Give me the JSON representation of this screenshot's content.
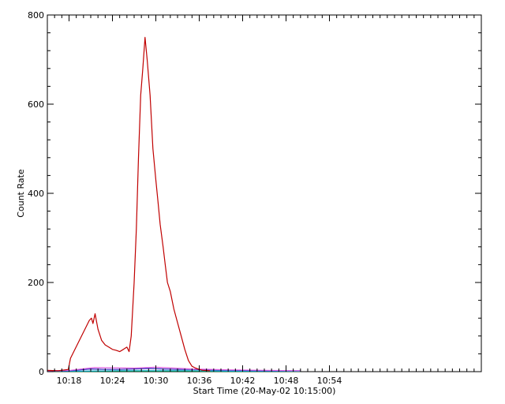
{
  "chart_data": {
    "type": "line",
    "title": "",
    "xlabel": "Start Time (20-May-02 10:15:00)",
    "ylabel": "Count Rate",
    "x_unit": "minutes past 10:15:00",
    "xlim": [
      0,
      60
    ],
    "ylim": [
      0,
      800
    ],
    "x_ticks": [
      {
        "value": 3,
        "label": "10:18"
      },
      {
        "value": 9,
        "label": "10:24"
      },
      {
        "value": 15,
        "label": "10:30"
      },
      {
        "value": 21,
        "label": "10:36"
      },
      {
        "value": 27,
        "label": "10:42"
      },
      {
        "value": 33,
        "label": "10:48"
      },
      {
        "value": 39,
        "label": "10:54"
      }
    ],
    "y_ticks": [
      {
        "value": 0,
        "label": "0"
      },
      {
        "value": 200,
        "label": "200"
      },
      {
        "value": 400,
        "label": "400"
      },
      {
        "value": 600,
        "label": "600"
      },
      {
        "value": 800,
        "label": "800"
      }
    ],
    "series": [
      {
        "color": "#c00000",
        "x": [
          0,
          1.5,
          2.9,
          3.2,
          5.8,
          6.1,
          6.3,
          6.6,
          7.0,
          7.5,
          8.0,
          8.5,
          9.0,
          9.5,
          10.0,
          10.5,
          11.0,
          11.3,
          11.6,
          12.0,
          12.3,
          12.6,
          12.9,
          13.2,
          13.5,
          13.8,
          14.2,
          14.6,
          15.0,
          15.3,
          15.6,
          16.0,
          16.3,
          16.6,
          17.0,
          17.5,
          18.0,
          18.5,
          19.0,
          19.5,
          20.0,
          20.5,
          21.0,
          21.5,
          22.5
        ],
        "y": [
          3,
          2,
          5,
          30,
          115,
          120,
          108,
          130,
          95,
          70,
          60,
          55,
          50,
          48,
          45,
          50,
          55,
          45,
          80,
          200,
          320,
          480,
          620,
          680,
          750,
          700,
          620,
          500,
          430,
          380,
          330,
          280,
          240,
          200,
          180,
          140,
          110,
          80,
          50,
          25,
          12,
          8,
          5,
          3,
          2
        ]
      },
      {
        "color": "#e060e0",
        "x": [
          0,
          3.2,
          5.8,
          6.5,
          12,
          15,
          20,
          25,
          30,
          35
        ],
        "y": [
          2,
          3,
          8,
          9,
          8,
          10,
          6,
          4,
          3,
          2
        ]
      },
      {
        "color": "#3030c0",
        "x": [
          0,
          3,
          6,
          8,
          10,
          12,
          14,
          16,
          18,
          20,
          22,
          26,
          30,
          35
        ],
        "y": [
          1,
          2,
          6,
          5,
          5,
          6,
          7,
          6,
          5,
          5,
          4,
          3,
          2,
          2
        ]
      },
      {
        "color": "#00a0c0",
        "x": [
          0,
          5,
          10,
          15,
          20,
          25,
          30,
          35
        ],
        "y": [
          1,
          1,
          2,
          2,
          2,
          1,
          1,
          1
        ]
      },
      {
        "color": "#109010",
        "x": [
          0,
          5,
          10,
          15,
          20,
          25,
          30,
          35
        ],
        "y": [
          0.5,
          0.5,
          1,
          1,
          1,
          0.5,
          0.5,
          0.5
        ]
      }
    ],
    "grid": false,
    "legend": "none"
  }
}
